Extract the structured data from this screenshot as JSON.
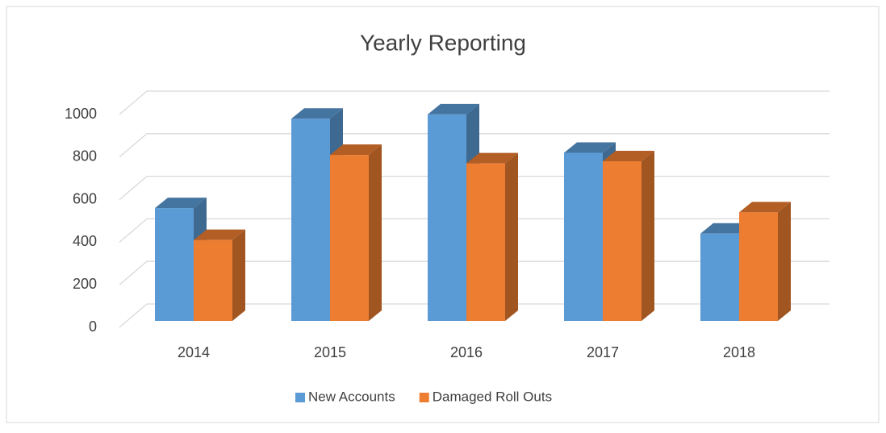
{
  "chart_data": {
    "type": "bar3d",
    "title": "Yearly Reporting",
    "categories": [
      "2014",
      "2015",
      "2016",
      "2017",
      "2018"
    ],
    "series": [
      {
        "name": "New Accounts",
        "color": "#5b9bd5",
        "values": [
          530,
          950,
          970,
          790,
          410
        ]
      },
      {
        "name": "Damaged Roll Outs",
        "color": "#ed7d31",
        "values": [
          380,
          780,
          740,
          750,
          510
        ]
      }
    ],
    "ylim": [
      0,
      1000
    ],
    "yticks": [
      0,
      200,
      400,
      600,
      800,
      1000
    ],
    "grid": true,
    "legend": "bottom"
  }
}
